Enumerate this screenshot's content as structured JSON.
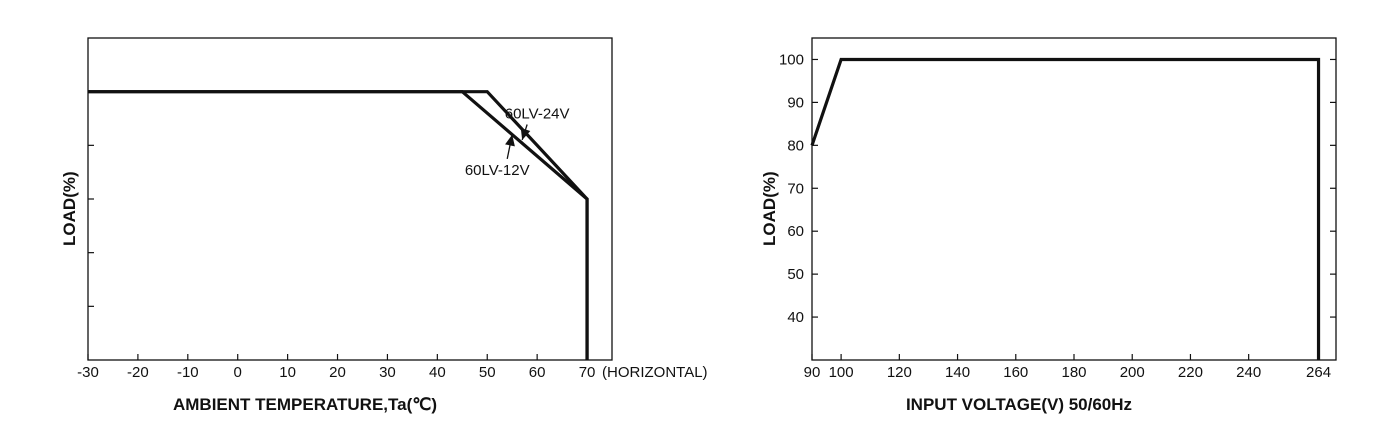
{
  "chart_data": [
    {
      "type": "line",
      "xlabel": "AMBIENT TEMPERATURE,Ta(℃)",
      "ylabel": "LOAD(%)",
      "x_note": "(HORIZONTAL)",
      "xticks": [
        -30,
        -20,
        -10,
        0,
        10,
        20,
        30,
        40,
        50,
        60,
        70
      ],
      "xlim": [
        -30,
        75
      ],
      "ylim": [
        0,
        120
      ],
      "y_tick_values": [
        20,
        40,
        60,
        80,
        100
      ],
      "y_tick_labels_shown": false,
      "grid": false,
      "series": [
        {
          "name": "60LV-24V",
          "x": [
            -30,
            50,
            70,
            70
          ],
          "y": [
            100,
            100,
            60,
            0
          ]
        },
        {
          "name": "60LV-12V",
          "x": [
            -30,
            45,
            70,
            70
          ],
          "y": [
            100,
            100,
            60,
            0
          ]
        }
      ],
      "annotations": [
        {
          "text": "60LV-24V",
          "x": 60,
          "y": 90,
          "arrow_to": [
            57,
            82
          ]
        },
        {
          "text": "60LV-12V",
          "x": 52,
          "y": 69,
          "arrow_to": [
            55,
            84
          ]
        }
      ]
    },
    {
      "type": "line",
      "xlabel": "INPUT VOLTAGE(V)  50/60Hz",
      "ylabel": "LOAD(%)",
      "xticks": [
        90,
        100,
        120,
        140,
        160,
        180,
        200,
        220,
        240,
        264
      ],
      "yticks": [
        40,
        50,
        60,
        70,
        80,
        90,
        100
      ],
      "xlim": [
        90,
        270
      ],
      "ylim": [
        30,
        105
      ],
      "grid": false,
      "series": [
        {
          "x": [
            90,
            100,
            264,
            264
          ],
          "y": [
            80,
            100,
            100,
            30
          ]
        }
      ]
    }
  ]
}
